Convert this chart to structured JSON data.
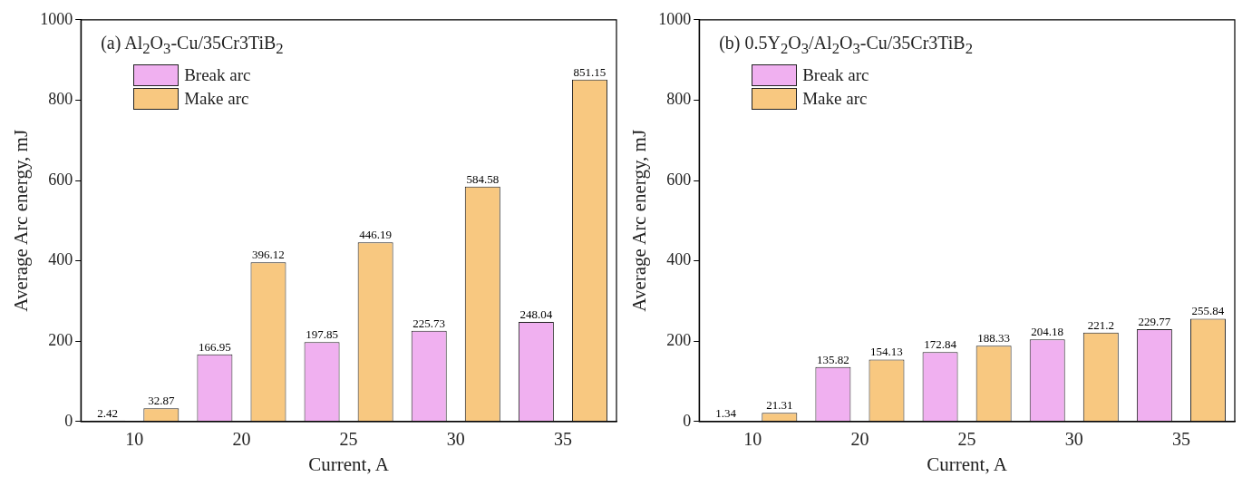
{
  "chart_data": [
    {
      "type": "bar",
      "title": "(a)  Al$_{2}$O$_{3}$-Cu/35Cr3TiB$_{2}$",
      "xlabel": "Current, A",
      "ylabel": "Average Arc energy, mJ",
      "categories": [
        "10",
        "20",
        "25",
        "30",
        "35"
      ],
      "series": [
        {
          "name": "Break arc",
          "color": "#f0b0f0",
          "values": [
            2.42,
            166.95,
            197.85,
            225.73,
            248.04
          ]
        },
        {
          "name": "Make arc",
          "color": "#f8c880",
          "values": [
            32.87,
            396.12,
            446.19,
            584.58,
            851.15
          ]
        }
      ],
      "ylim": [
        0,
        1000
      ],
      "yticks": [
        0,
        200,
        400,
        600,
        800,
        1000
      ],
      "grid": false,
      "legend": "top left",
      "data_labels": true
    },
    {
      "type": "bar",
      "title": "(b)  0.5Y$_{2}$O$_{3}$/Al$_{2}$O$_{3}$-Cu/35Cr3TiB$_{2}$",
      "xlabel": "Current, A",
      "ylabel": "Average Arc energy, mJ",
      "categories": [
        "10",
        "20",
        "25",
        "30",
        "35"
      ],
      "series": [
        {
          "name": "Break arc",
          "color": "#f0b0f0",
          "values": [
            1.34,
            135.82,
            172.84,
            204.18,
            229.77
          ]
        },
        {
          "name": "Make arc",
          "color": "#f8c880",
          "values": [
            21.31,
            154.13,
            188.33,
            221.2,
            255.84
          ]
        }
      ],
      "ylim": [
        0,
        1000
      ],
      "yticks": [
        0,
        200,
        400,
        600,
        800,
        1000
      ],
      "grid": false,
      "legend": "top left",
      "data_labels": true
    }
  ]
}
